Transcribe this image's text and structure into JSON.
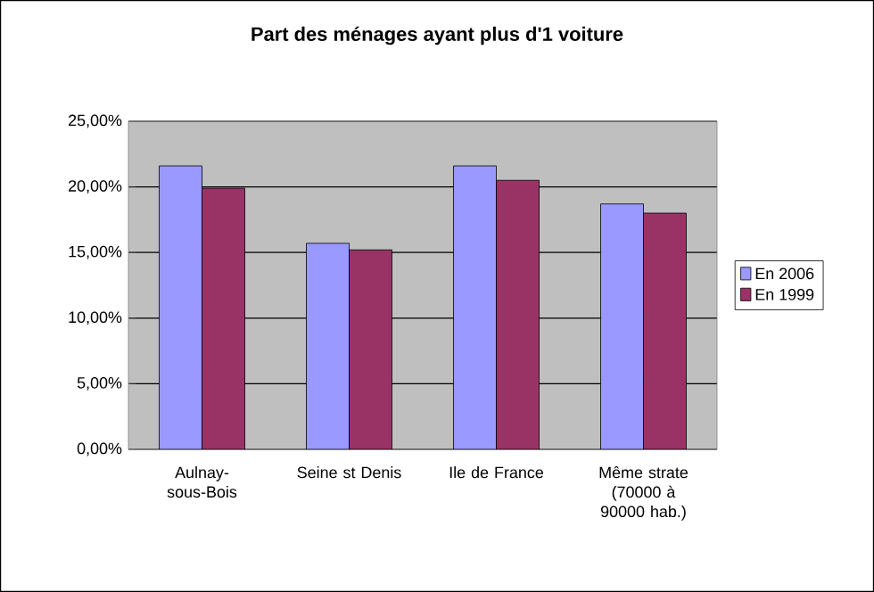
{
  "chart_data": {
    "type": "bar",
    "title": "Part des ménages ayant plus d'1 voiture",
    "categories": [
      "Aulnay-sous-Bois",
      "Seine st Denis",
      "Ile de France",
      "Même strate (70000 à 90000 hab.)"
    ],
    "series": [
      {
        "name": "En 2006",
        "color": "#9999ff",
        "values": [
          21.6,
          15.7,
          21.6,
          18.7
        ]
      },
      {
        "name": "En 1999",
        "color": "#993366",
        "values": [
          19.9,
          15.2,
          20.5,
          18.0
        ]
      }
    ],
    "ylim": [
      0,
      25
    ],
    "yticks": [
      {
        "value": 0,
        "label": "0,00%"
      },
      {
        "value": 5,
        "label": "5,00%"
      },
      {
        "value": 10,
        "label": "10,00%"
      },
      {
        "value": 15,
        "label": "15,00%"
      },
      {
        "value": 20,
        "label": "20,00%"
      },
      {
        "value": 25,
        "label": "25,00%"
      }
    ],
    "grid": "y",
    "legend": "right"
  }
}
